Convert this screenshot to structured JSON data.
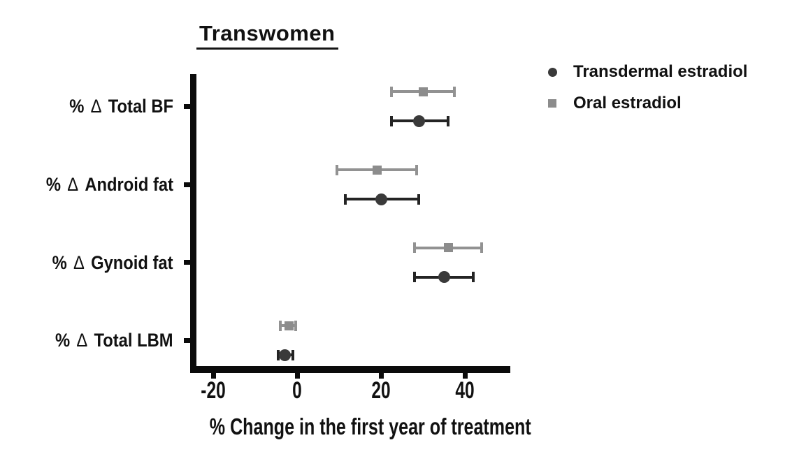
{
  "chart_data": {
    "type": "scatter",
    "subtype": "horizontal-dot-plot-with-error-bars",
    "title": "Transwomen",
    "xlabel": "% Change in the first year of treatment",
    "ylabel": "",
    "x_ticks": [
      -20,
      0,
      20,
      40
    ],
    "xlim": [
      -24.8,
      50.8
    ],
    "grid": false,
    "legend_position": "top-right",
    "categories": [
      "% Δ Total BF",
      "% Δ Android fat",
      "% Δ Gynoid fat",
      "% Δ Total LBM"
    ],
    "series": [
      {
        "name": "Transdermal estradiol",
        "marker": "circle",
        "color": "#3a3a3a",
        "bar_color": "#242424",
        "values": [
          29,
          20,
          35,
          -3
        ],
        "ci_low": [
          22.5,
          11.5,
          28,
          -4.5
        ],
        "ci_high": [
          36,
          29,
          42,
          -1
        ]
      },
      {
        "name": "Oral estradiol",
        "marker": "square",
        "color": "#8c8c8c",
        "bar_color": "#929292",
        "values": [
          30,
          19,
          36,
          -2
        ],
        "ci_low": [
          22.5,
          9.5,
          28,
          -4
        ],
        "ci_high": [
          37.5,
          28.5,
          44,
          -0.3
        ]
      }
    ]
  }
}
